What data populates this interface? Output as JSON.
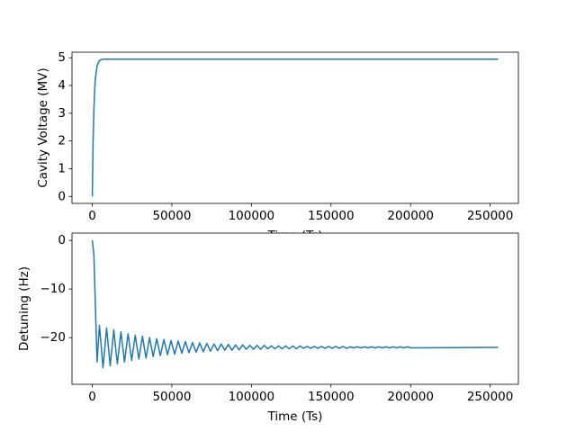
{
  "chart_data": [
    {
      "type": "line",
      "xlabel": "Time (Ts)",
      "ylabel": "Cavity Voltage (MV)",
      "color": "#1f77b4",
      "x": [
        0,
        500,
        1000,
        1500,
        2000,
        3000,
        4000,
        5000,
        7000,
        10000,
        255000
      ],
      "values": [
        0,
        1.95,
        3.13,
        3.85,
        4.28,
        4.7,
        4.86,
        4.92,
        4.95,
        4.95,
        4.95
      ],
      "xlim": [
        -12750,
        267750
      ],
      "xticks": [
        0,
        50000,
        100000,
        150000,
        200000,
        250000
      ],
      "ylim": [
        -0.25,
        5.2
      ],
      "yticks": [
        0,
        1,
        2,
        3,
        4,
        5
      ]
    },
    {
      "type": "line",
      "xlabel": "Time (Ts)",
      "ylabel": "Detuning (Hz)",
      "color": "#1f77b4",
      "x": [
        0,
        1000,
        2000,
        3000,
        4500,
        6750,
        9000,
        11250,
        13500,
        15750,
        18000,
        20250,
        22500,
        24750,
        27000,
        29250,
        31500,
        33750,
        36000,
        38250,
        40500,
        42750,
        45000,
        47250,
        49500,
        51750,
        54000,
        56250,
        58500,
        60750,
        63000,
        65250,
        67500,
        69750,
        72000,
        74250,
        76500,
        78750,
        81000,
        83250,
        85500,
        87750,
        90000,
        92250,
        94500,
        96750,
        99000,
        101250,
        103500,
        105750,
        108000,
        110250,
        112500,
        114750,
        117000,
        119250,
        121500,
        123750,
        126000,
        128250,
        130500,
        132750,
        135000,
        137250,
        139500,
        141750,
        144000,
        146250,
        148500,
        150750,
        153000,
        155250,
        157500,
        159750,
        162000,
        164250,
        166500,
        168750,
        171000,
        173250,
        175500,
        177750,
        180000,
        182250,
        184500,
        186750,
        189000,
        191250,
        193500,
        195750,
        198000,
        200250,
        255000
      ],
      "values": [
        0,
        -3,
        -14,
        -25,
        -17.5,
        -26.2,
        -18.0,
        -25.8,
        -18.4,
        -25.4,
        -18.8,
        -25.0,
        -19.2,
        -24.7,
        -19.5,
        -24.4,
        -19.7,
        -24.2,
        -20.0,
        -23.9,
        -20.2,
        -23.7,
        -20.4,
        -23.5,
        -20.6,
        -23.4,
        -20.7,
        -23.2,
        -20.8,
        -23.1,
        -21.0,
        -23.0,
        -21.1,
        -22.9,
        -21.2,
        -22.8,
        -21.3,
        -22.7,
        -21.3,
        -22.6,
        -21.4,
        -22.6,
        -21.5,
        -22.5,
        -21.5,
        -22.4,
        -21.6,
        -22.4,
        -21.6,
        -22.4,
        -21.6,
        -22.3,
        -21.7,
        -22.3,
        -21.7,
        -22.3,
        -21.7,
        -22.3,
        -21.7,
        -22.3,
        -21.7,
        -22.2,
        -21.8,
        -22.2,
        -21.8,
        -22.2,
        -21.8,
        -22.2,
        -21.8,
        -22.2,
        -21.8,
        -22.2,
        -21.8,
        -22.2,
        -21.9,
        -22.1,
        -21.9,
        -22.1,
        -21.9,
        -22.1,
        -21.9,
        -22.1,
        -21.9,
        -22.1,
        -21.9,
        -22.1,
        -21.9,
        -22.1,
        -21.9,
        -22.1,
        -21.9,
        -22.1,
        -22.0
      ],
      "xlim": [
        -12750,
        267750
      ],
      "xticks": [
        0,
        50000,
        100000,
        150000,
        200000,
        250000
      ],
      "ylim": [
        -29.6,
        1.5
      ],
      "yticks": [
        {
          "value": -20,
          "label": "−20"
        },
        {
          "value": -10,
          "label": "−10"
        },
        0
      ]
    }
  ]
}
